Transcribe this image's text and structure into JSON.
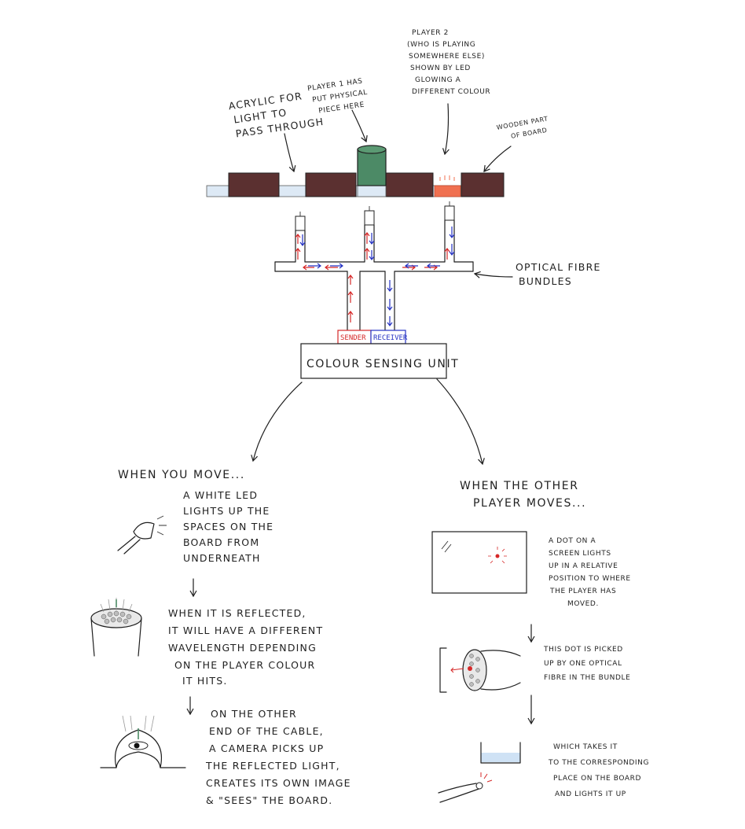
{
  "labels": {
    "acrylic": [
      "ACRYLIC FOR",
      "LIGHT TO",
      "PASS THROUGH"
    ],
    "player1": [
      "PLAYER 1 HAS",
      "PUT PHYSICAL",
      "PIECE HERE"
    ],
    "player2": [
      "PLAYER 2",
      "(WHO IS PLAYING",
      "SOMEWHERE ELSE)",
      "SHOWN BY LED",
      "GLOWING A",
      "DIFFERENT COLOUR"
    ],
    "wooden": [
      "WOODEN PART",
      "OF BOARD"
    ],
    "optical": [
      "OPTICAL FIBRE",
      "BUNDLES"
    ],
    "sender": "SENDER",
    "receiver": "RECEIVER",
    "unit": "COLOUR SENSING UNIT"
  },
  "left": {
    "heading": "WHEN YOU MOVE...",
    "step1": [
      "A WHITE LED",
      "LIGHTS UP THE",
      "SPACES ON THE",
      "BOARD FROM",
      "UNDERNEATH"
    ],
    "step2": [
      "WHEN IT IS REFLECTED,",
      "IT WILL HAVE A DIFFERENT",
      "WAVELENGTH DEPENDING",
      "ON THE PLAYER COLOUR",
      "IT HITS."
    ],
    "step3": [
      "ON THE OTHER",
      "END OF THE CABLE,",
      "A CAMERA PICKS UP",
      "THE REFLECTED LIGHT,",
      "CREATES ITS OWN IMAGE",
      "& \"SEES\" THE BOARD."
    ]
  },
  "right": {
    "heading": [
      "WHEN THE OTHER",
      "PLAYER MOVES..."
    ],
    "step1": [
      "A DOT ON A",
      "SCREEN LIGHTS",
      "UP IN A RELATIVE",
      "POSITION TO WHERE",
      "THE PLAYER HAS",
      "MOVED."
    ],
    "step2": [
      "THIS DOT IS PICKED",
      "UP BY ONE OPTICAL",
      "FIBRE IN THE BUNDLE"
    ],
    "step3": [
      "WHICH TAKES IT",
      "TO THE CORRESPONDING",
      "PLACE ON THE BOARD",
      "AND LIGHTS IT UP"
    ]
  },
  "colors": {
    "wood": "#5b3030",
    "acrylic": "#dde9f5",
    "piece": "#4c8a66",
    "player2_led": "#f07050",
    "red_arrow": "#d62828",
    "blue_arrow": "#2633c4"
  }
}
